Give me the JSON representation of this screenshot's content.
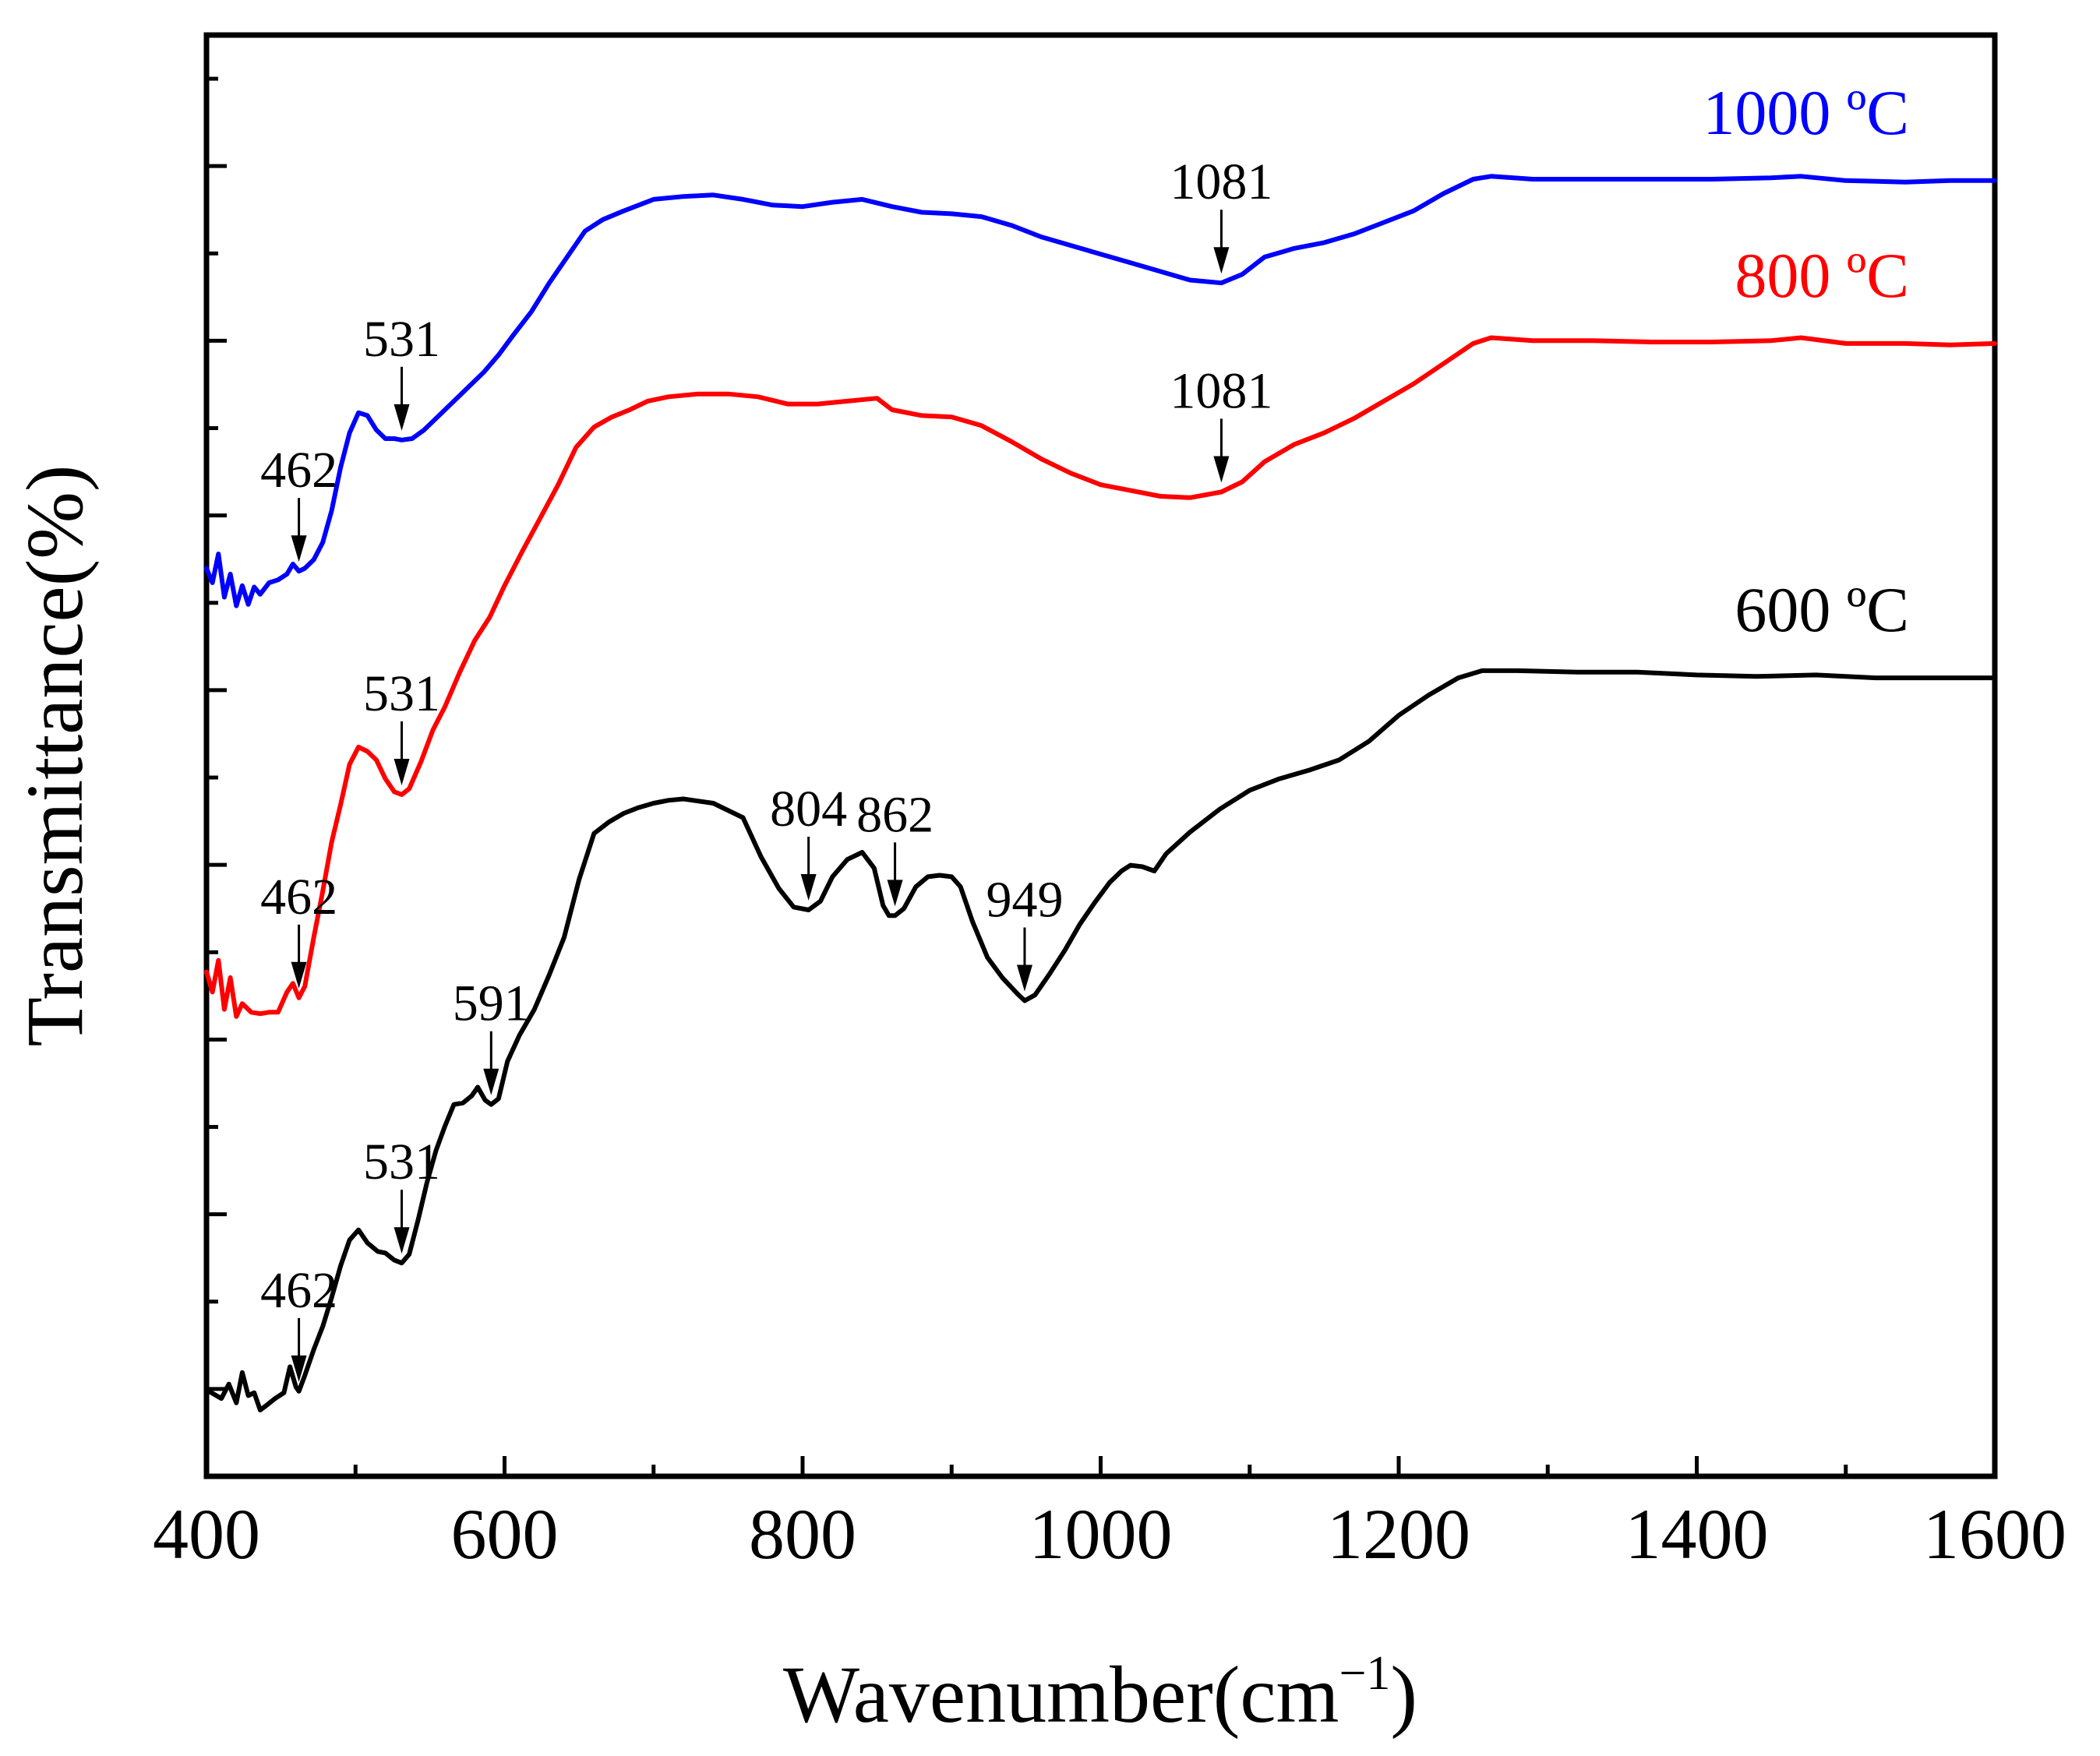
{
  "chart_data": {
    "type": "line",
    "title": "",
    "xlabel": "Wavenumber(cm",
    "xlabel_sup": "−1",
    "xlabel_close": ")",
    "ylabel": "Transmittance(%)",
    "xlim": [
      400,
      1600
    ],
    "ylim": [
      0,
      100
    ],
    "x_ticks": [
      "400",
      "600",
      "800",
      "1000",
      "1200",
      "1400",
      "1600"
    ],
    "x_tick_values": [
      400,
      600,
      800,
      1000,
      1200,
      1400,
      1600
    ],
    "y_ticks_labeled": false,
    "grid": false,
    "series": [
      {
        "name": "600 ºC",
        "color": "#000000",
        "points": [
          [
            400,
            6
          ],
          [
            410,
            5.4
          ],
          [
            415,
            6.4
          ],
          [
            420,
            5.1
          ],
          [
            424,
            7.2
          ],
          [
            428,
            5.6
          ],
          [
            432,
            5.8
          ],
          [
            436,
            4.6
          ],
          [
            440,
            4.9
          ],
          [
            446,
            5.4
          ],
          [
            452,
            5.8
          ],
          [
            456,
            7.6
          ],
          [
            460,
            6.2
          ],
          [
            462,
            5.9
          ],
          [
            466,
            7.0
          ],
          [
            472,
            8.8
          ],
          [
            478,
            10.4
          ],
          [
            484,
            12.4
          ],
          [
            490,
            14.6
          ],
          [
            496,
            16.4
          ],
          [
            502,
            17.1
          ],
          [
            508,
            16.2
          ],
          [
            515,
            15.6
          ],
          [
            520,
            15.5
          ],
          [
            526,
            15.0
          ],
          [
            531,
            14.8
          ],
          [
            536,
            15.4
          ],
          [
            542,
            17.8
          ],
          [
            548,
            20.4
          ],
          [
            554,
            22.6
          ],
          [
            560,
            24.3
          ],
          [
            566,
            25.8
          ],
          [
            572,
            25.9
          ],
          [
            578,
            26.4
          ],
          [
            582,
            27.0
          ],
          [
            587,
            26.1
          ],
          [
            591,
            25.8
          ],
          [
            596,
            26.2
          ],
          [
            602,
            28.8
          ],
          [
            610,
            30.6
          ],
          [
            620,
            32.4
          ],
          [
            630,
            34.8
          ],
          [
            640,
            37.4
          ],
          [
            650,
            41.4
          ],
          [
            660,
            44.6
          ],
          [
            670,
            45.4
          ],
          [
            680,
            46.0
          ],
          [
            690,
            46.4
          ],
          [
            700,
            46.7
          ],
          [
            710,
            46.9
          ],
          [
            720,
            47.0
          ],
          [
            740,
            46.7
          ],
          [
            760,
            45.7
          ],
          [
            772,
            43.0
          ],
          [
            784,
            40.8
          ],
          [
            794,
            39.5
          ],
          [
            804,
            39.3
          ],
          [
            812,
            39.9
          ],
          [
            820,
            41.6
          ],
          [
            830,
            42.8
          ],
          [
            840,
            43.3
          ],
          [
            848,
            42.2
          ],
          [
            854,
            39.6
          ],
          [
            858,
            38.9
          ],
          [
            862,
            38.9
          ],
          [
            868,
            39.4
          ],
          [
            876,
            40.9
          ],
          [
            884,
            41.6
          ],
          [
            892,
            41.7
          ],
          [
            900,
            41.6
          ],
          [
            906,
            40.9
          ],
          [
            914,
            38.5
          ],
          [
            924,
            36.0
          ],
          [
            934,
            34.6
          ],
          [
            944,
            33.5
          ],
          [
            949,
            33.0
          ],
          [
            956,
            33.4
          ],
          [
            966,
            34.9
          ],
          [
            976,
            36.5
          ],
          [
            986,
            38.3
          ],
          [
            996,
            39.8
          ],
          [
            1006,
            41.2
          ],
          [
            1014,
            42.0
          ],
          [
            1020,
            42.4
          ],
          [
            1028,
            42.3
          ],
          [
            1036,
            42.0
          ],
          [
            1044,
            43.2
          ],
          [
            1060,
            44.7
          ],
          [
            1080,
            46.3
          ],
          [
            1100,
            47.6
          ],
          [
            1120,
            48.4
          ],
          [
            1140,
            49.0
          ],
          [
            1160,
            49.7
          ],
          [
            1180,
            51.0
          ],
          [
            1200,
            52.8
          ],
          [
            1220,
            54.2
          ],
          [
            1240,
            55.4
          ],
          [
            1256,
            55.9
          ],
          [
            1280,
            55.9
          ],
          [
            1320,
            55.8
          ],
          [
            1360,
            55.8
          ],
          [
            1400,
            55.6
          ],
          [
            1440,
            55.5
          ],
          [
            1480,
            55.6
          ],
          [
            1520,
            55.4
          ],
          [
            1560,
            55.4
          ],
          [
            1600,
            55.4
          ]
        ]
      },
      {
        "name": "800 ºC",
        "color": "#ff0000",
        "points": [
          [
            400,
            35
          ],
          [
            404,
            33.6
          ],
          [
            408,
            35.8
          ],
          [
            412,
            32.4
          ],
          [
            416,
            34.6
          ],
          [
            420,
            31.9
          ],
          [
            424,
            32.8
          ],
          [
            430,
            32.2
          ],
          [
            436,
            32.1
          ],
          [
            442,
            32.2
          ],
          [
            448,
            32.2
          ],
          [
            454,
            33.6
          ],
          [
            458,
            34.2
          ],
          [
            462,
            33.2
          ],
          [
            466,
            34.0
          ],
          [
            472,
            37.4
          ],
          [
            478,
            40.6
          ],
          [
            484,
            44.0
          ],
          [
            490,
            46.6
          ],
          [
            496,
            49.4
          ],
          [
            502,
            50.6
          ],
          [
            508,
            50.3
          ],
          [
            514,
            49.7
          ],
          [
            520,
            48.4
          ],
          [
            526,
            47.5
          ],
          [
            531,
            47.3
          ],
          [
            536,
            47.7
          ],
          [
            544,
            49.6
          ],
          [
            552,
            51.8
          ],
          [
            560,
            53.4
          ],
          [
            570,
            55.8
          ],
          [
            580,
            58.0
          ],
          [
            590,
            59.6
          ],
          [
            600,
            61.8
          ],
          [
            612,
            64.2
          ],
          [
            624,
            66.5
          ],
          [
            636,
            68.8
          ],
          [
            648,
            71.4
          ],
          [
            660,
            72.8
          ],
          [
            672,
            73.5
          ],
          [
            684,
            74.0
          ],
          [
            696,
            74.6
          ],
          [
            710,
            74.9
          ],
          [
            730,
            75.1
          ],
          [
            750,
            75.1
          ],
          [
            770,
            74.9
          ],
          [
            790,
            74.4
          ],
          [
            810,
            74.4
          ],
          [
            830,
            74.6
          ],
          [
            850,
            74.8
          ],
          [
            860,
            74.0
          ],
          [
            880,
            73.6
          ],
          [
            900,
            73.5
          ],
          [
            920,
            72.9
          ],
          [
            940,
            71.8
          ],
          [
            960,
            70.6
          ],
          [
            980,
            69.6
          ],
          [
            1000,
            68.8
          ],
          [
            1020,
            68.4
          ],
          [
            1040,
            68.0
          ],
          [
            1060,
            67.9
          ],
          [
            1081,
            68.3
          ],
          [
            1095,
            69.0
          ],
          [
            1110,
            70.4
          ],
          [
            1130,
            71.6
          ],
          [
            1150,
            72.4
          ],
          [
            1170,
            73.4
          ],
          [
            1190,
            74.6
          ],
          [
            1210,
            75.8
          ],
          [
            1230,
            77.2
          ],
          [
            1250,
            78.6
          ],
          [
            1262,
            79.0
          ],
          [
            1290,
            78.8
          ],
          [
            1330,
            78.8
          ],
          [
            1370,
            78.7
          ],
          [
            1410,
            78.7
          ],
          [
            1450,
            78.8
          ],
          [
            1470,
            79.0
          ],
          [
            1500,
            78.6
          ],
          [
            1540,
            78.6
          ],
          [
            1570,
            78.5
          ],
          [
            1600,
            78.6
          ]
        ]
      },
      {
        "name": "1000 ºC",
        "color": "#0000ff",
        "points": [
          [
            400,
            63
          ],
          [
            404,
            62.0
          ],
          [
            408,
            64.0
          ],
          [
            412,
            61.0
          ],
          [
            416,
            62.6
          ],
          [
            420,
            60.4
          ],
          [
            424,
            61.8
          ],
          [
            428,
            60.5
          ],
          [
            432,
            61.7
          ],
          [
            436,
            61.2
          ],
          [
            442,
            62.0
          ],
          [
            448,
            62.2
          ],
          [
            454,
            62.6
          ],
          [
            458,
            63.3
          ],
          [
            462,
            62.8
          ],
          [
            466,
            63.0
          ],
          [
            472,
            63.6
          ],
          [
            478,
            64.8
          ],
          [
            484,
            67.0
          ],
          [
            490,
            70.0
          ],
          [
            496,
            72.4
          ],
          [
            502,
            73.8
          ],
          [
            508,
            73.6
          ],
          [
            514,
            72.6
          ],
          [
            520,
            72.0
          ],
          [
            526,
            72.0
          ],
          [
            531,
            71.9
          ],
          [
            538,
            72.0
          ],
          [
            546,
            72.6
          ],
          [
            556,
            73.6
          ],
          [
            566,
            74.6
          ],
          [
            576,
            75.6
          ],
          [
            586,
            76.6
          ],
          [
            596,
            77.8
          ],
          [
            606,
            79.2
          ],
          [
            618,
            80.8
          ],
          [
            630,
            82.8
          ],
          [
            642,
            84.6
          ],
          [
            654,
            86.4
          ],
          [
            666,
            87.2
          ],
          [
            680,
            87.8
          ],
          [
            700,
            88.6
          ],
          [
            720,
            88.8
          ],
          [
            740,
            88.9
          ],
          [
            760,
            88.6
          ],
          [
            780,
            88.2
          ],
          [
            800,
            88.1
          ],
          [
            820,
            88.4
          ],
          [
            840,
            88.6
          ],
          [
            860,
            88.1
          ],
          [
            880,
            87.7
          ],
          [
            900,
            87.6
          ],
          [
            920,
            87.4
          ],
          [
            940,
            86.8
          ],
          [
            960,
            86.0
          ],
          [
            980,
            85.4
          ],
          [
            1000,
            84.8
          ],
          [
            1020,
            84.2
          ],
          [
            1040,
            83.6
          ],
          [
            1060,
            83.0
          ],
          [
            1081,
            82.8
          ],
          [
            1095,
            83.4
          ],
          [
            1110,
            84.6
          ],
          [
            1130,
            85.2
          ],
          [
            1150,
            85.6
          ],
          [
            1170,
            86.2
          ],
          [
            1190,
            87.0
          ],
          [
            1210,
            87.8
          ],
          [
            1230,
            89.0
          ],
          [
            1250,
            90.0
          ],
          [
            1262,
            90.2
          ],
          [
            1290,
            90.0
          ],
          [
            1330,
            90.0
          ],
          [
            1370,
            90.0
          ],
          [
            1410,
            90.0
          ],
          [
            1450,
            90.1
          ],
          [
            1470,
            90.2
          ],
          [
            1500,
            89.9
          ],
          [
            1540,
            89.8
          ],
          [
            1570,
            89.9
          ],
          [
            1600,
            89.9
          ]
        ]
      }
    ],
    "annotations": [
      {
        "text": "462",
        "series": 0,
        "x": 462
      },
      {
        "text": "531",
        "series": 0,
        "x": 531
      },
      {
        "text": "591",
        "series": 0,
        "x": 591
      },
      {
        "text": "804",
        "series": 0,
        "x": 804
      },
      {
        "text": "862",
        "series": 0,
        "x": 862
      },
      {
        "text": "949",
        "series": 0,
        "x": 949
      },
      {
        "text": "462",
        "series": 1,
        "x": 462
      },
      {
        "text": "531",
        "series": 1,
        "x": 531
      },
      {
        "text": "1081",
        "series": 1,
        "x": 1081
      },
      {
        "text": "462",
        "series": 2,
        "x": 462
      },
      {
        "text": "531",
        "series": 2,
        "x": 531
      },
      {
        "text": "1081",
        "series": 2,
        "x": 1081
      }
    ]
  }
}
